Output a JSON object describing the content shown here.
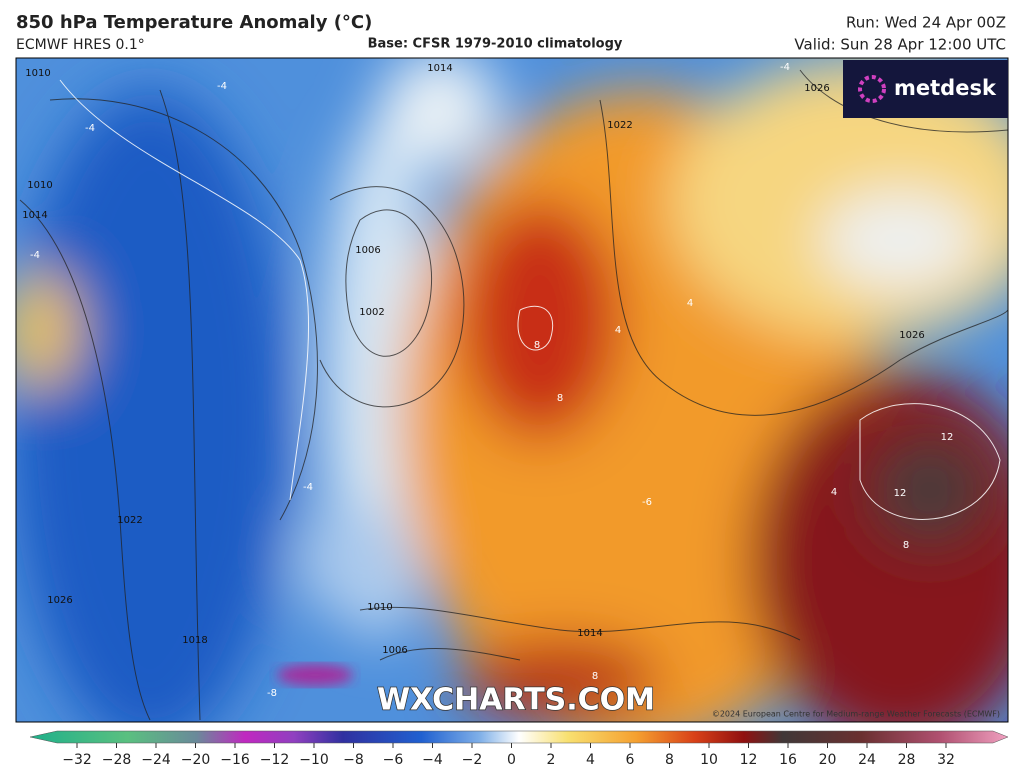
{
  "header": {
    "title": "850 hPa Temperature Anomaly (°C)",
    "model": "ECMWF HRES 0.1°",
    "base": "Base: CFSR 1979-2010 climatology",
    "run": "Run: Wed 24 Apr 00Z",
    "valid": "Valid: Sun 28 Apr 12:00 UTC"
  },
  "logo": "metdesk",
  "watermark": "WXCHARTS.COM",
  "copyright": "©2024 European Centre for Medium-range Weather Forecasts (ECMWF)",
  "contour_labels": [
    "1010",
    "1014",
    "1026",
    "1022",
    "1010",
    "1014",
    "1006",
    "1002",
    "1022",
    "1026",
    "1018",
    "1010",
    "1014",
    "1006",
    "1026"
  ],
  "anomaly_labels": [
    "-4",
    "-4",
    "-4",
    "-4",
    "8",
    "8",
    "4",
    "12",
    "12",
    "8",
    "8",
    "-8",
    "-6",
    "4",
    "4",
    "-4"
  ],
  "colorbar": {
    "labels": [
      "−32",
      "−28",
      "−24",
      "−20",
      "−16",
      "−12",
      "−10",
      "−8",
      "−6",
      "−4",
      "−2",
      "0",
      "2",
      "4",
      "6",
      "8",
      "10",
      "12",
      "16",
      "20",
      "24",
      "28",
      "32"
    ]
  }
}
